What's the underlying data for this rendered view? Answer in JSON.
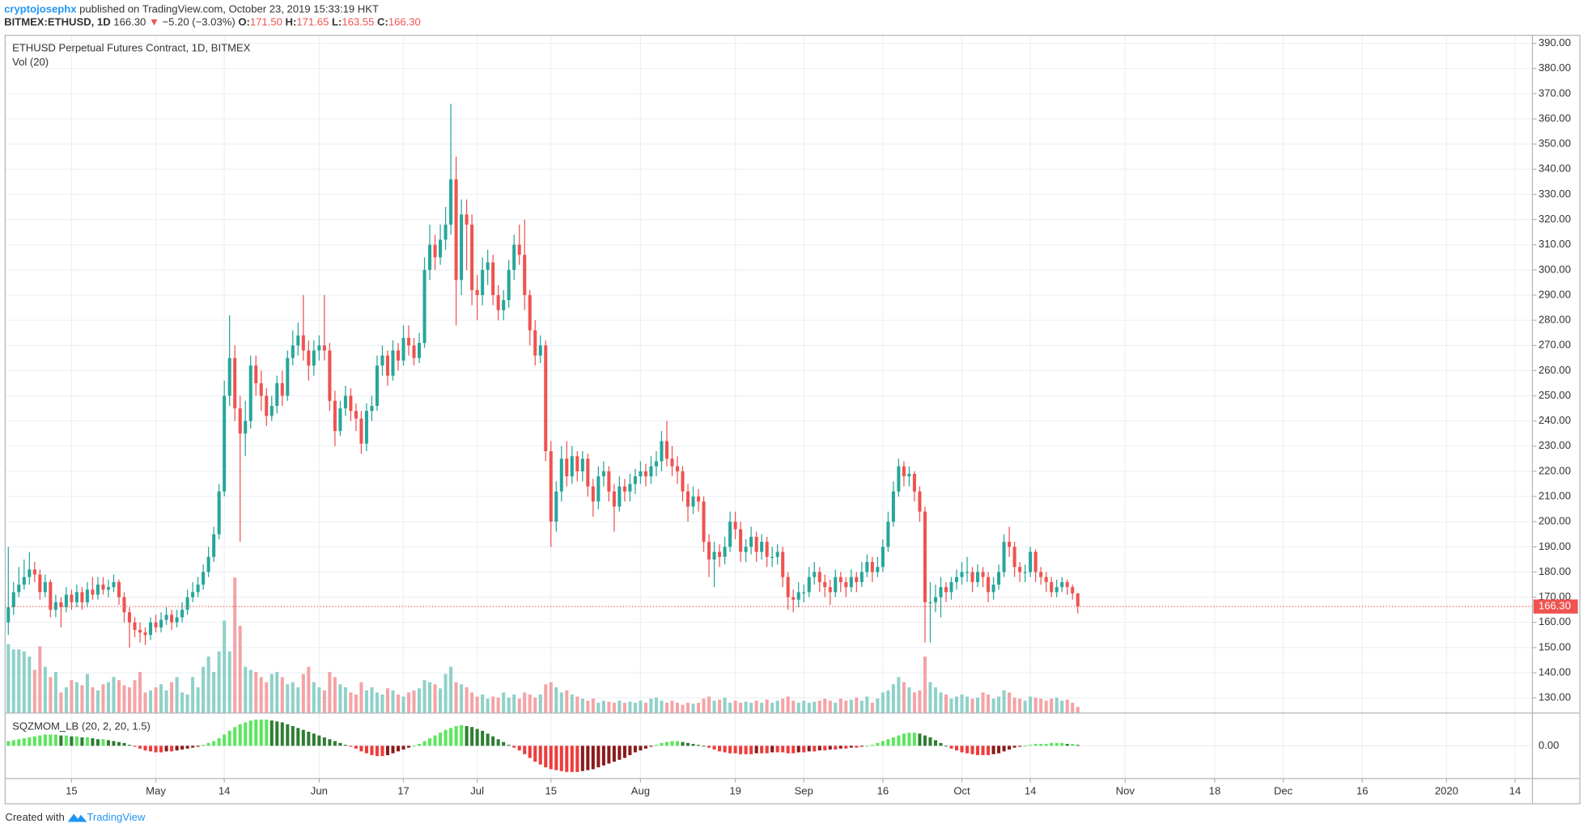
{
  "header": {
    "author": "cryptojosephx",
    "published": "published on TradingView.com, October 23, 2019 15:33:19 HKT",
    "symbol": "BITMEX:ETHUSD, 1D",
    "price": "166.30",
    "arrow": "▼",
    "change": "−5.20 (−3.03%)",
    "quote": [
      {
        "key": "O:",
        "value": "171.50"
      },
      {
        "key": "H:",
        "value": "171.65"
      },
      {
        "key": "L:",
        "value": "163.55"
      },
      {
        "key": "C:",
        "value": "166.30"
      }
    ]
  },
  "footer": {
    "created": "Created with",
    "brand": "TradingView"
  },
  "chart_data": {
    "type": "candlestick",
    "title": "ETHUSD Perpetual Futures Contract, 1D, BITMEX",
    "up_color": "#26a69a",
    "down_color": "#ef5350",
    "grid": true,
    "xlim": [
      -0.6,
      289.3
    ],
    "xticks": [
      {
        "value": 12,
        "label": "15"
      },
      {
        "value": 28,
        "label": "May"
      },
      {
        "value": 41,
        "label": "14"
      },
      {
        "value": 59,
        "label": "Jun"
      },
      {
        "value": 75,
        "label": "17"
      },
      {
        "value": 89,
        "label": "Jul"
      },
      {
        "value": 103,
        "label": "15"
      },
      {
        "value": 120,
        "label": "Aug"
      },
      {
        "value": 138,
        "label": "19"
      },
      {
        "value": 151,
        "label": "Sep"
      },
      {
        "value": 166,
        "label": "16"
      },
      {
        "value": 181,
        "label": "Oct"
      },
      {
        "value": 194,
        "label": "14"
      },
      {
        "value": 212,
        "label": "Nov"
      },
      {
        "value": 229,
        "label": "18"
      },
      {
        "value": 242,
        "label": "Dec"
      },
      {
        "value": 257,
        "label": "16"
      },
      {
        "value": 273,
        "label": "2020"
      },
      {
        "value": 286,
        "label": "14"
      }
    ],
    "ylim": [
      124,
      393.2
    ],
    "yticks": [
      {
        "value": 130,
        "label": "130.00"
      },
      {
        "value": 140,
        "label": "140.00"
      },
      {
        "value": 150,
        "label": "150.00"
      },
      {
        "value": 160,
        "label": "160.00"
      },
      {
        "value": 170,
        "label": "170.00"
      },
      {
        "value": 180,
        "label": "180.00"
      },
      {
        "value": 190,
        "label": "190.00"
      },
      {
        "value": 200,
        "label": "200.00"
      },
      {
        "value": 210,
        "label": "210.00"
      },
      {
        "value": 220,
        "label": "220.00"
      },
      {
        "value": 230,
        "label": "230.00"
      },
      {
        "value": 240,
        "label": "240.00"
      },
      {
        "value": 250,
        "label": "250.00"
      },
      {
        "value": 260,
        "label": "260.00"
      },
      {
        "value": 270,
        "label": "270.00"
      },
      {
        "value": 280,
        "label": "280.00"
      },
      {
        "value": 290,
        "label": "290.00"
      },
      {
        "value": 300,
        "label": "300.00"
      },
      {
        "value": 310,
        "label": "310.00"
      },
      {
        "value": 320,
        "label": "320.00"
      },
      {
        "value": 330,
        "label": "330.00"
      },
      {
        "value": 340,
        "label": "340.00"
      },
      {
        "value": 350,
        "label": "350.00"
      },
      {
        "value": 360,
        "label": "360.00"
      },
      {
        "value": 370,
        "label": "370.00"
      },
      {
        "value": 380,
        "label": "380.00"
      },
      {
        "value": 390,
        "label": "390.00"
      }
    ],
    "last_price": {
      "value": 166.3,
      "label": "166.30"
    },
    "open": [
      160,
      166,
      172,
      175,
      178,
      181,
      179,
      172,
      176,
      165,
      168,
      166,
      171,
      168,
      172,
      168,
      173,
      171,
      175,
      173,
      174,
      176,
      170,
      164,
      160,
      157,
      156,
      155,
      160,
      158,
      161,
      163,
      160,
      162,
      165,
      170,
      172,
      175,
      180,
      186,
      195,
      212,
      250,
      265,
      245,
      235,
      240,
      262,
      255,
      250,
      242,
      246,
      255,
      250,
      265,
      270,
      274,
      268,
      262,
      268,
      270,
      268,
      248,
      236,
      245,
      250,
      244,
      241,
      231,
      244,
      246,
      262,
      266,
      258,
      268,
      264,
      273,
      270,
      265,
      271,
      300,
      310,
      305,
      312,
      318,
      336,
      296,
      322,
      318,
      292,
      290,
      300,
      303,
      290,
      284,
      288,
      300,
      310,
      306,
      290,
      276,
      266,
      270,
      228,
      200,
      212,
      225,
      218,
      226,
      220,
      225,
      214,
      208,
      218,
      220,
      212,
      206,
      214,
      212,
      215,
      218,
      220,
      218,
      222,
      224,
      232,
      225,
      222,
      220,
      212,
      206,
      210,
      208,
      192,
      185,
      188,
      186,
      190,
      200,
      197,
      188,
      190,
      194,
      188,
      192,
      186,
      186,
      188,
      178,
      170,
      169,
      172,
      172,
      178,
      180,
      176,
      174,
      172,
      178,
      176,
      174,
      178,
      176,
      180,
      184,
      180,
      182,
      190,
      200,
      212,
      222,
      218,
      219,
      212,
      204,
      168,
      168,
      170,
      174,
      172,
      176,
      178,
      180,
      180,
      176,
      180,
      178,
      172,
      175,
      180,
      192,
      190,
      182,
      180,
      180,
      188,
      180,
      178,
      176,
      172,
      174,
      176,
      174,
      171.5
    ],
    "high": [
      190,
      176,
      182,
      185,
      188,
      184,
      181,
      179,
      177,
      171,
      170,
      174,
      173,
      175,
      174,
      176,
      178,
      178,
      178,
      177,
      179,
      177,
      172,
      166,
      162,
      160,
      158,
      162,
      163,
      164,
      166,
      165,
      165,
      168,
      173,
      176,
      178,
      183,
      190,
      198,
      215,
      256,
      282,
      270,
      250,
      248,
      266,
      266,
      260,
      253,
      250,
      258,
      260,
      268,
      276,
      279,
      290,
      272,
      272,
      274,
      290,
      271,
      252,
      248,
      254,
      253,
      247,
      244,
      247,
      250,
      266,
      270,
      268,
      272,
      271,
      278,
      278,
      273,
      275,
      305,
      318,
      314,
      318,
      325,
      366,
      345,
      328,
      328,
      322,
      298,
      305,
      308,
      306,
      294,
      292,
      304,
      314,
      318,
      320,
      292,
      280,
      274,
      272,
      232,
      216,
      230,
      232,
      230,
      228,
      228,
      227,
      217,
      222,
      224,
      222,
      215,
      218,
      217,
      219,
      221,
      224,
      223,
      226,
      228,
      236,
      240,
      230,
      226,
      222,
      215,
      214,
      213,
      210,
      195,
      192,
      191,
      194,
      204,
      204,
      200,
      193,
      198,
      196,
      195,
      194,
      190,
      191,
      190,
      180,
      173,
      176,
      175,
      182,
      184,
      182,
      179,
      177,
      181,
      180,
      178,
      181,
      180,
      184,
      187,
      186,
      186,
      193,
      204,
      216,
      225,
      224,
      222,
      220,
      214,
      206,
      176,
      175,
      178,
      176,
      178,
      181,
      184,
      186,
      182,
      183,
      182,
      180,
      178,
      183,
      195,
      198,
      192,
      184,
      183,
      190,
      189,
      182,
      180,
      178,
      177,
      178,
      177,
      175,
      171.65
    ],
    "low": [
      155,
      163,
      170,
      173,
      175,
      176,
      169,
      170,
      162,
      162,
      158,
      164,
      165,
      166,
      165,
      166,
      169,
      169,
      171,
      170,
      172,
      167,
      160,
      150,
      154,
      152,
      151,
      153,
      156,
      156,
      159,
      157,
      158,
      160,
      163,
      168,
      170,
      173,
      178,
      184,
      193,
      210,
      246,
      240,
      192,
      226,
      237,
      250,
      244,
      238,
      240,
      243,
      246,
      248,
      262,
      266,
      264,
      256,
      258,
      264,
      264,
      244,
      230,
      234,
      242,
      240,
      236,
      227,
      228,
      240,
      244,
      258,
      254,
      256,
      260,
      262,
      266,
      262,
      263,
      269,
      296,
      300,
      302,
      308,
      314,
      278,
      290,
      300,
      286,
      280,
      286,
      294,
      286,
      280,
      280,
      285,
      296,
      302,
      284,
      270,
      262,
      263,
      224,
      190,
      196,
      208,
      214,
      215,
      216,
      216,
      210,
      202,
      205,
      214,
      208,
      196,
      204,
      208,
      208,
      211,
      215,
      214,
      215,
      218,
      220,
      222,
      218,
      215,
      208,
      200,
      203,
      204,
      188,
      178,
      174,
      182,
      183,
      188,
      193,
      184,
      184,
      187,
      184,
      185,
      182,
      182,
      183,
      174,
      165,
      164,
      166,
      168,
      170,
      175,
      172,
      170,
      167,
      170,
      172,
      170,
      172,
      172,
      174,
      178,
      176,
      178,
      180,
      188,
      198,
      210,
      214,
      214,
      208,
      200,
      152,
      152,
      164,
      162,
      168,
      169,
      173,
      175,
      176,
      172,
      174,
      174,
      168,
      169,
      173,
      178,
      186,
      178,
      176,
      176,
      178,
      176,
      175,
      172,
      170,
      170,
      172,
      171,
      169,
      163.55
    ],
    "close": [
      166,
      172,
      175,
      178,
      181,
      179,
      172,
      176,
      165,
      168,
      166,
      171,
      168,
      172,
      168,
      173,
      171,
      175,
      173,
      174,
      176,
      170,
      164,
      160,
      157,
      156,
      155,
      160,
      158,
      161,
      163,
      160,
      162,
      165,
      170,
      172,
      175,
      180,
      186,
      195,
      212,
      250,
      265,
      245,
      235,
      240,
      262,
      255,
      250,
      242,
      246,
      255,
      250,
      265,
      270,
      274,
      268,
      262,
      268,
      270,
      268,
      248,
      236,
      245,
      250,
      244,
      241,
      231,
      244,
      246,
      262,
      266,
      258,
      268,
      264,
      273,
      270,
      265,
      271,
      300,
      310,
      305,
      312,
      318,
      336,
      296,
      322,
      318,
      292,
      290,
      300,
      303,
      290,
      284,
      288,
      300,
      310,
      306,
      290,
      276,
      266,
      270,
      228,
      200,
      212,
      225,
      218,
      226,
      220,
      225,
      214,
      208,
      218,
      220,
      212,
      206,
      214,
      212,
      215,
      218,
      220,
      218,
      222,
      224,
      232,
      225,
      222,
      220,
      212,
      206,
      210,
      208,
      192,
      185,
      188,
      186,
      190,
      200,
      197,
      188,
      190,
      194,
      188,
      192,
      186,
      186,
      188,
      178,
      170,
      169,
      172,
      172,
      178,
      180,
      176,
      174,
      172,
      178,
      176,
      174,
      178,
      176,
      180,
      184,
      180,
      182,
      190,
      200,
      212,
      222,
      218,
      219,
      212,
      204,
      168,
      168,
      170,
      174,
      172,
      176,
      178,
      180,
      180,
      176,
      180,
      178,
      172,
      175,
      180,
      192,
      190,
      182,
      180,
      180,
      188,
      180,
      178,
      176,
      172,
      174,
      176,
      174,
      171.5,
      166.3
    ],
    "volume": {
      "title": "Vol (20)",
      "up_color": "#8fd1c9",
      "down_color": "#f5a3a6",
      "ylim": [
        0,
        660
      ],
      "values": [
        67,
        62,
        62,
        60,
        55,
        42,
        65,
        45,
        35,
        40,
        20,
        25,
        32,
        30,
        27,
        38,
        25,
        22,
        28,
        30,
        35,
        32,
        27,
        25,
        32,
        40,
        20,
        22,
        25,
        28,
        22,
        30,
        35,
        20,
        18,
        35,
        25,
        45,
        55,
        40,
        60,
        90,
        60,
        132,
        85,
        45,
        42,
        40,
        35,
        30,
        38,
        40,
        35,
        28,
        30,
        25,
        38,
        45,
        30,
        25,
        22,
        40,
        35,
        28,
        25,
        20,
        18,
        30,
        22,
        25,
        20,
        18,
        24,
        22,
        18,
        16,
        20,
        22,
        24,
        32,
        30,
        28,
        24,
        38,
        45,
        30,
        28,
        25,
        20,
        16,
        18,
        14,
        16,
        15,
        20,
        15,
        18,
        14,
        20,
        18,
        15,
        18,
        28,
        30,
        25,
        20,
        22,
        18,
        16,
        14,
        12,
        14,
        10,
        12,
        11,
        10,
        12,
        10,
        11,
        10,
        12,
        10,
        14,
        15,
        12,
        10,
        12,
        10,
        8,
        10,
        9,
        10,
        14,
        16,
        12,
        13,
        15,
        10,
        12,
        10,
        11,
        10,
        12,
        10,
        13,
        10,
        12,
        14,
        16,
        12,
        10,
        12,
        10,
        11,
        12,
        14,
        12,
        10,
        14,
        12,
        13,
        15,
        12,
        16,
        10,
        14,
        20,
        22,
        28,
        35,
        30,
        25,
        20,
        22,
        55,
        30,
        25,
        20,
        18,
        14,
        16,
        18,
        16,
        14,
        15,
        20,
        18,
        14,
        16,
        22,
        20,
        15,
        14,
        12,
        16,
        15,
        14,
        12,
        14,
        15,
        12,
        13,
        10,
        6
      ]
    },
    "indicator": {
      "title": "SQZMOM_LB (20, 2, 20, 1.5)",
      "ylim": [
        -35,
        35
      ],
      "yticks": [
        {
          "value": 0,
          "label": "0.00"
        }
      ],
      "colors": {
        "pos_up": "#5ce65c",
        "pos_down": "#2e7d32",
        "neg_down": "#ef3b3b",
        "neg_up": "#8b1a1a"
      },
      "values": [
        5,
        6,
        7,
        8,
        9,
        10,
        11,
        12,
        12,
        12,
        11,
        11,
        10,
        10,
        9,
        9,
        8,
        7,
        7,
        6,
        5,
        4,
        3,
        1,
        -1,
        -3,
        -5,
        -6,
        -7,
        -7,
        -6,
        -6,
        -5,
        -4,
        -3,
        -2,
        -1,
        1,
        3,
        5,
        8,
        12,
        16,
        20,
        23,
        25,
        27,
        28,
        28,
        28,
        27,
        26,
        25,
        23,
        21,
        19,
        17,
        15,
        13,
        11,
        9,
        7,
        5,
        3,
        1,
        -1,
        -3,
        -6,
        -8,
        -10,
        -11,
        -11,
        -10,
        -8,
        -6,
        -4,
        -2,
        0,
        2,
        5,
        8,
        11,
        14,
        17,
        19,
        21,
        22,
        21,
        20,
        18,
        16,
        13,
        10,
        7,
        4,
        1,
        -2,
        -5,
        -9,
        -13,
        -17,
        -20,
        -23,
        -25,
        -26,
        -27,
        -28,
        -28,
        -28,
        -27,
        -26,
        -25,
        -23,
        -21,
        -19,
        -17,
        -15,
        -13,
        -10,
        -7,
        -5,
        -3,
        -1,
        1,
        3,
        4,
        5,
        5,
        4,
        3,
        2,
        1,
        0,
        -2,
        -4,
        -6,
        -7,
        -8,
        -8,
        -9,
        -9,
        -9,
        -8,
        -8,
        -8,
        -7,
        -7,
        -7,
        -8,
        -8,
        -7,
        -7,
        -6,
        -6,
        -5,
        -5,
        -4,
        -4,
        -3,
        -3,
        -2,
        -2,
        -1,
        0,
        1,
        3,
        5,
        7,
        9,
        11,
        13,
        14,
        14,
        13,
        11,
        9,
        6,
        3,
        0,
        -3,
        -5,
        -7,
        -8,
        -9,
        -10,
        -10,
        -10,
        -9,
        -8,
        -6,
        -4,
        -2,
        -1,
        0,
        1,
        2,
        2,
        2,
        3,
        3,
        3,
        2,
        2,
        1
      ]
    }
  }
}
